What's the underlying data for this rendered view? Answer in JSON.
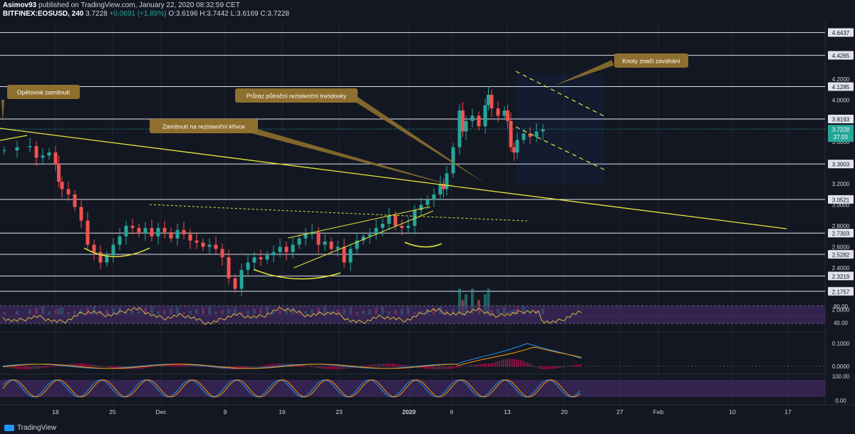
{
  "header": {
    "author": "Asimov93",
    "published": "published on TradingView.com, January 22, 2020 08:32:59 CET",
    "symbol": "BITFINEX:EOSUSD, 240",
    "last": "3.7228",
    "change": "+0.0691 (+1.89%)",
    "ohlc": "O:3.6196 H:3.7442 L:3.6169 C:3.7228"
  },
  "brand": "TradingView",
  "colors": {
    "background": "#131722",
    "up": "#26a69a",
    "down": "#ef5350",
    "level_line": "#e0e3eb",
    "trendline": "#e5e53a",
    "annotation": "#8e6f2e",
    "annotation_text": "#ffffff",
    "indicator_band": "#4a2d6e",
    "rsi_line": "#d8b43a",
    "macd_line": "#2196f3",
    "signal_line": "#ff9800",
    "histogram": "#c2185b"
  },
  "chart_data": {
    "type": "candlestick",
    "symbol": "EOSUSD",
    "exchange": "BITFINEX",
    "interval": "240",
    "x_ticks": [
      "18",
      "25",
      "Dec",
      "9",
      "16",
      "23",
      "2020",
      "6",
      "13",
      "20",
      "27",
      "Feb",
      "10",
      "17"
    ],
    "y_ticks": [
      "4.2000",
      "4.0000",
      "3.6000",
      "3.2000",
      "3.0000",
      "2.8000",
      "2.6000",
      "2.4000",
      "2.0000"
    ],
    "y_range": [
      1.95,
      4.75
    ],
    "last_price": "3.7228",
    "countdown": "27:03",
    "levels": [
      {
        "value": 4.6437,
        "label": "4.6437"
      },
      {
        "value": 4.4265,
        "label": "4.4265"
      },
      {
        "value": 4.1285,
        "label": "4.1285"
      },
      {
        "value": 3.8193,
        "label": "3.8193"
      },
      {
        "value": 3.3903,
        "label": "3.3903"
      },
      {
        "value": 3.0521,
        "label": "3.0521"
      },
      {
        "value": 2.7303,
        "label": "2.7303"
      },
      {
        "value": 2.5282,
        "label": "2.5282"
      },
      {
        "value": 2.3219,
        "label": "2.3219"
      },
      {
        "value": 2.1757,
        "label": "2.1757"
      }
    ],
    "price_path": [
      [
        0,
        3.52
      ],
      [
        2,
        3.55
      ],
      [
        4,
        3.56
      ],
      [
        5,
        3.45
      ],
      [
        6,
        3.47
      ],
      [
        7,
        3.5
      ],
      [
        8,
        3.39
      ],
      [
        8.5,
        3.22
      ],
      [
        9,
        3.15
      ],
      [
        10,
        3.1
      ],
      [
        11,
        2.98
      ],
      [
        12,
        2.85
      ],
      [
        13,
        2.62
      ],
      [
        14,
        2.55
      ],
      [
        15,
        2.45
      ],
      [
        16,
        2.52
      ],
      [
        17,
        2.62
      ],
      [
        18,
        2.7
      ],
      [
        19,
        2.8
      ],
      [
        20,
        2.78
      ],
      [
        21,
        2.73
      ],
      [
        22,
        2.78
      ],
      [
        23,
        2.7
      ],
      [
        24,
        2.78
      ],
      [
        25,
        2.74
      ],
      [
        26,
        2.68
      ],
      [
        27,
        2.76
      ],
      [
        28,
        2.72
      ],
      [
        29,
        2.66
      ],
      [
        30,
        2.64
      ],
      [
        31,
        2.6
      ],
      [
        32,
        2.62
      ],
      [
        33,
        2.58
      ],
      [
        34,
        2.5
      ],
      [
        35,
        2.3
      ],
      [
        36,
        2.2
      ],
      [
        37,
        2.38
      ],
      [
        38,
        2.45
      ],
      [
        39,
        2.5
      ],
      [
        40,
        2.48
      ],
      [
        41,
        2.52
      ],
      [
        42,
        2.55
      ],
      [
        43,
        2.6
      ],
      [
        44,
        2.55
      ],
      [
        45,
        2.62
      ],
      [
        46,
        2.68
      ],
      [
        47,
        2.72
      ],
      [
        48,
        2.74
      ],
      [
        49,
        2.62
      ],
      [
        50,
        2.65
      ],
      [
        51,
        2.58
      ],
      [
        52,
        2.6
      ],
      [
        53,
        2.45
      ],
      [
        54,
        2.58
      ],
      [
        55,
        2.66
      ],
      [
        56,
        2.7
      ],
      [
        57,
        2.72
      ],
      [
        58,
        2.78
      ],
      [
        59,
        2.82
      ],
      [
        60,
        2.9
      ],
      [
        61,
        2.8
      ],
      [
        62,
        2.78
      ],
      [
        63,
        2.8
      ],
      [
        64,
        2.95
      ],
      [
        65,
        3.0
      ],
      [
        66,
        3.05
      ],
      [
        67,
        3.1
      ],
      [
        68,
        3.2
      ],
      [
        68.5,
        3.15
      ],
      [
        69,
        3.3
      ],
      [
        70,
        3.55
      ],
      [
        71,
        3.9
      ],
      [
        71.5,
        3.7
      ],
      [
        72,
        3.8
      ],
      [
        73,
        3.85
      ],
      [
        74,
        3.75
      ],
      [
        75,
        3.95
      ],
      [
        75.5,
        4.05
      ],
      [
        76,
        3.92
      ],
      [
        77,
        3.85
      ],
      [
        78,
        3.9
      ],
      [
        78.5,
        3.8
      ],
      [
        79,
        3.55
      ],
      [
        79.5,
        3.5
      ],
      [
        80,
        3.62
      ],
      [
        81,
        3.68
      ],
      [
        82,
        3.65
      ],
      [
        83,
        3.7
      ],
      [
        84,
        3.72
      ]
    ],
    "indicators": {
      "rsi": {
        "ticks": [
          "80.00",
          "40.00"
        ],
        "overbought": 70,
        "oversold": 30
      },
      "macd": {
        "ticks": [
          "0.1000",
          "0.0000"
        ]
      },
      "stoch_rsi": {
        "ticks": [
          "100.00",
          "0.00"
        ]
      }
    }
  },
  "annotations": [
    {
      "id": "opetovne",
      "text": "Opětovné zamítnutí"
    },
    {
      "id": "zamitnuti",
      "text": "Zamítnutí na rezistenční křivce"
    },
    {
      "id": "pruraz",
      "text": "Průraz půlroční rezistenční trendovky"
    },
    {
      "id": "knoty",
      "text": "Knoty značí zaváhání"
    }
  ]
}
